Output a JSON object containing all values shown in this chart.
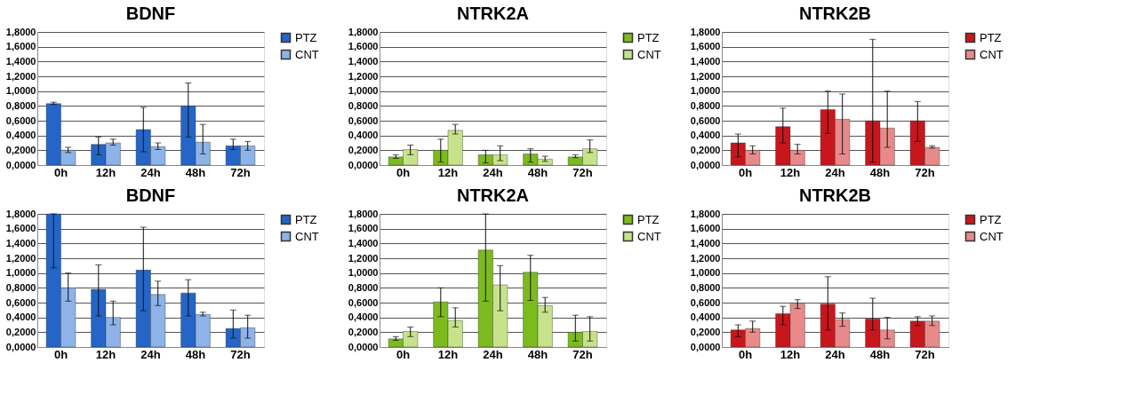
{
  "chart_data": [
    {
      "type": "bar",
      "title": "BDNF",
      "categories": [
        "0h",
        "12h",
        "24h",
        "48h",
        "72h"
      ],
      "ylim": [
        0,
        1.8
      ],
      "yticks": [
        {
          "value": 0,
          "label": "0,0000"
        },
        {
          "value": 0.2,
          "label": "0,2000"
        },
        {
          "value": 0.4,
          "label": "0,4000"
        },
        {
          "value": 0.6,
          "label": "0,6000"
        },
        {
          "value": 0.8,
          "label": "0,8000"
        },
        {
          "value": 1.0,
          "label": "1,0000"
        },
        {
          "value": 1.2,
          "label": "1,2000"
        },
        {
          "value": 1.4,
          "label": "1,4000"
        },
        {
          "value": 1.6,
          "label": "1,6000"
        },
        {
          "value": 1.8,
          "label": "1,8000"
        }
      ],
      "grid": "y",
      "legend": "right",
      "series": [
        {
          "name": "PTZ",
          "color": "#2465c7",
          "values": [
            0.83,
            0.28,
            0.48,
            0.8,
            0.26
          ],
          "errors": [
            [
              0.82,
              0.85
            ],
            [
              0.14,
              0.38
            ],
            [
              0.18,
              0.78
            ],
            [
              0.38,
              1.11
            ],
            [
              0.21,
              0.35
            ]
          ]
        },
        {
          "name": "CNT",
          "color": "#8db3e8",
          "values": [
            0.2,
            0.3,
            0.25,
            0.31,
            0.26
          ],
          "errors": [
            [
              0.17,
              0.24
            ],
            [
              0.27,
              0.35
            ],
            [
              0.21,
              0.3
            ],
            [
              0.15,
              0.55
            ],
            [
              0.2,
              0.32
            ]
          ]
        }
      ]
    },
    {
      "type": "bar",
      "title": "NTRK2A",
      "categories": [
        "0h",
        "12h",
        "24h",
        "48h",
        "72h"
      ],
      "ylim": [
        0,
        1.8
      ],
      "yticks": [
        {
          "value": 0,
          "label": "0,0000"
        },
        {
          "value": 0.2,
          "label": "0,2000"
        },
        {
          "value": 0.4,
          "label": "0,4000"
        },
        {
          "value": 0.6,
          "label": "0,6000"
        },
        {
          "value": 0.8,
          "label": "0,8000"
        },
        {
          "value": 1.0,
          "label": "1,0000"
        },
        {
          "value": 1.2,
          "label": "1,2000"
        },
        {
          "value": 1.4,
          "label": "1,4000"
        },
        {
          "value": 1.6,
          "label": "1,6000"
        },
        {
          "value": 1.8,
          "label": "1,8000"
        }
      ],
      "grid": "y",
      "legend": "right",
      "series": [
        {
          "name": "PTZ",
          "color": "#7cbb1e",
          "values": [
            0.11,
            0.2,
            0.14,
            0.15,
            0.11
          ],
          "errors": [
            [
              0.09,
              0.14
            ],
            [
              0.04,
              0.35
            ],
            [
              0.03,
              0.2
            ],
            [
              0.04,
              0.22
            ],
            [
              0.1,
              0.14
            ]
          ]
        },
        {
          "name": "CNT",
          "color": "#c6e38c",
          "values": [
            0.21,
            0.47,
            0.14,
            0.08,
            0.22
          ],
          "errors": [
            [
              0.14,
              0.27
            ],
            [
              0.42,
              0.55
            ],
            [
              0.06,
              0.26
            ],
            [
              0.05,
              0.12
            ],
            [
              0.17,
              0.34
            ]
          ]
        }
      ]
    },
    {
      "type": "bar",
      "title": "NTRK2B",
      "categories": [
        "0h",
        "12h",
        "24h",
        "48h",
        "72h"
      ],
      "ylim": [
        0,
        1.8
      ],
      "yticks": [
        {
          "value": 0,
          "label": "0,0000"
        },
        {
          "value": 0.2,
          "label": "0,2000"
        },
        {
          "value": 0.4,
          "label": "0,4000"
        },
        {
          "value": 0.6,
          "label": "0,6000"
        },
        {
          "value": 0.8,
          "label": "0,8000"
        },
        {
          "value": 1.0,
          "label": "1,0000"
        },
        {
          "value": 1.2,
          "label": "1,2000"
        },
        {
          "value": 1.4,
          "label": "1,4000"
        },
        {
          "value": 1.6,
          "label": "1,6000"
        },
        {
          "value": 1.8,
          "label": "1,8000"
        }
      ],
      "grid": "y",
      "legend": "right",
      "series": [
        {
          "name": "PTZ",
          "color": "#c8161d",
          "values": [
            0.3,
            0.52,
            0.75,
            0.6,
            0.6
          ],
          "errors": [
            [
              0.11,
              0.42
            ],
            [
              0.3,
              0.77
            ],
            [
              0.43,
              1.0
            ],
            [
              0.04,
              1.7
            ],
            [
              0.32,
              0.86
            ]
          ]
        },
        {
          "name": "CNT",
          "color": "#e88a8a",
          "values": [
            0.2,
            0.2,
            0.62,
            0.5,
            0.24
          ],
          "errors": [
            [
              0.15,
              0.26
            ],
            [
              0.15,
              0.28
            ],
            [
              0.15,
              0.96
            ],
            [
              0.24,
              1.0
            ],
            [
              0.23,
              0.26
            ]
          ]
        }
      ]
    },
    {
      "type": "bar",
      "title": "BDNF",
      "categories": [
        "0h",
        "12h",
        "24h",
        "48h",
        "72h"
      ],
      "ylim": [
        0,
        1.8
      ],
      "yticks": [
        {
          "value": 0,
          "label": "0,0000"
        },
        {
          "value": 0.2,
          "label": "0,2000"
        },
        {
          "value": 0.4,
          "label": "0,4000"
        },
        {
          "value": 0.6,
          "label": "0,6000"
        },
        {
          "value": 0.8,
          "label": "0,8000"
        },
        {
          "value": 1.0,
          "label": "1,0000"
        },
        {
          "value": 1.2,
          "label": "1,2000"
        },
        {
          "value": 1.4,
          "label": "1,4000"
        },
        {
          "value": 1.6,
          "label": "1,6000"
        },
        {
          "value": 1.8,
          "label": "1,8000"
        }
      ],
      "grid": "y",
      "legend": "right",
      "series": [
        {
          "name": "PTZ",
          "color": "#2465c7",
          "values": [
            1.8,
            0.78,
            1.04,
            0.73,
            0.25
          ],
          "errors": [
            [
              1.07,
              1.8
            ],
            [
              0.42,
              1.11
            ],
            [
              0.49,
              1.62
            ],
            [
              0.42,
              0.91
            ],
            [
              0.12,
              0.5
            ]
          ]
        },
        {
          "name": "CNT",
          "color": "#8db3e8",
          "values": [
            0.8,
            0.4,
            0.71,
            0.44,
            0.26
          ],
          "errors": [
            [
              0.62,
              1.0
            ],
            [
              0.3,
              0.62
            ],
            [
              0.56,
              0.89
            ],
            [
              0.42,
              0.47
            ],
            [
              0.12,
              0.43
            ]
          ]
        }
      ]
    },
    {
      "type": "bar",
      "title": "NTRK2A",
      "categories": [
        "0h",
        "12h",
        "24h",
        "48h",
        "72h"
      ],
      "ylim": [
        0,
        1.8
      ],
      "yticks": [
        {
          "value": 0,
          "label": "0,0000"
        },
        {
          "value": 0.2,
          "label": "0,2000"
        },
        {
          "value": 0.4,
          "label": "0,4000"
        },
        {
          "value": 0.6,
          "label": "0,6000"
        },
        {
          "value": 0.8,
          "label": "0,8000"
        },
        {
          "value": 1.0,
          "label": "1,0000"
        },
        {
          "value": 1.2,
          "label": "1,2000"
        },
        {
          "value": 1.4,
          "label": "1,4000"
        },
        {
          "value": 1.6,
          "label": "1,6000"
        },
        {
          "value": 1.8,
          "label": "1,8000"
        }
      ],
      "grid": "y",
      "legend": "right",
      "series": [
        {
          "name": "PTZ",
          "color": "#7cbb1e",
          "values": [
            0.11,
            0.61,
            1.31,
            1.01,
            0.2
          ],
          "errors": [
            [
              0.09,
              0.14
            ],
            [
              0.41,
              0.8
            ],
            [
              0.62,
              1.8
            ],
            [
              0.63,
              1.24
            ],
            [
              0.08,
              0.43
            ]
          ]
        },
        {
          "name": "CNT",
          "color": "#c6e38c",
          "values": [
            0.21,
            0.36,
            0.84,
            0.56,
            0.21
          ],
          "errors": [
            [
              0.14,
              0.27
            ],
            [
              0.27,
              0.53
            ],
            [
              0.49,
              1.1
            ],
            [
              0.47,
              0.67
            ],
            [
              0.08,
              0.41
            ]
          ]
        }
      ]
    },
    {
      "type": "bar",
      "title": "NTRK2B",
      "categories": [
        "0h",
        "12h",
        "24h",
        "48h",
        "72h"
      ],
      "ylim": [
        0,
        1.8
      ],
      "yticks": [
        {
          "value": 0,
          "label": "0,0000"
        },
        {
          "value": 0.2,
          "label": "0,2000"
        },
        {
          "value": 0.4,
          "label": "0,4000"
        },
        {
          "value": 0.6,
          "label": "0,6000"
        },
        {
          "value": 0.8,
          "label": "0,8000"
        },
        {
          "value": 1.0,
          "label": "1,0000"
        },
        {
          "value": 1.2,
          "label": "1,2000"
        },
        {
          "value": 1.4,
          "label": "1,4000"
        },
        {
          "value": 1.6,
          "label": "1,6000"
        },
        {
          "value": 1.8,
          "label": "1,8000"
        }
      ],
      "grid": "y",
      "legend": "right",
      "series": [
        {
          "name": "PTZ",
          "color": "#c8161d",
          "values": [
            0.23,
            0.45,
            0.58,
            0.38,
            0.35
          ],
          "errors": [
            [
              0.14,
              0.3
            ],
            [
              0.3,
              0.55
            ],
            [
              0.23,
              0.95
            ],
            [
              0.23,
              0.66
            ],
            [
              0.29,
              0.41
            ]
          ]
        },
        {
          "name": "CNT",
          "color": "#e88a8a",
          "values": [
            0.25,
            0.58,
            0.37,
            0.23,
            0.35
          ],
          "errors": [
            [
              0.2,
              0.35
            ],
            [
              0.52,
              0.64
            ],
            [
              0.28,
              0.46
            ],
            [
              0.11,
              0.4
            ],
            [
              0.29,
              0.42
            ]
          ]
        }
      ]
    }
  ]
}
